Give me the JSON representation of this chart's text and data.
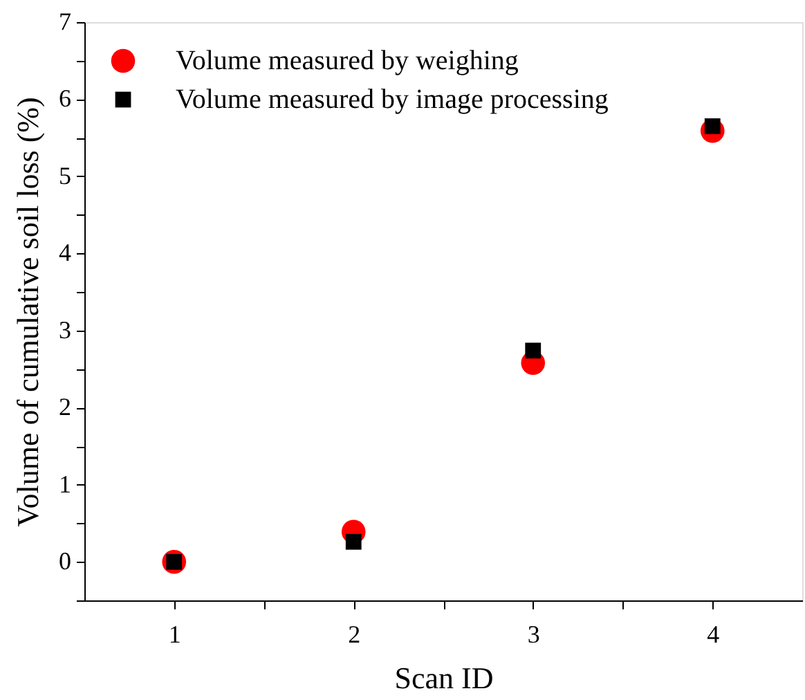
{
  "chart_data": {
    "type": "scatter",
    "xlabel": "Scan ID",
    "ylabel": "Volume of cumulative soil loss (%)",
    "x": [
      1,
      2,
      3,
      4
    ],
    "series": [
      {
        "name": "Volume measured by weighing",
        "color": "#ff0000",
        "marker": "circle",
        "values": [
          0,
          0.39,
          2.58,
          5.59
        ]
      },
      {
        "name": "Volume measured by image processing",
        "color": "#000000",
        "marker": "square",
        "values": [
          0,
          0.26,
          2.74,
          5.65
        ]
      }
    ],
    "xlim": [
      0.5,
      4.5
    ],
    "xticks": [
      1,
      {
        "value": 1.5,
        "label": null
      },
      2,
      {
        "value": 2.5,
        "label": null
      },
      3,
      {
        "value": 3.5,
        "label": null
      },
      4
    ],
    "ylim": [
      -0.5,
      7
    ],
    "yticks": [
      {
        "value": -0.5,
        "label": null
      },
      0,
      {
        "value": 0.5,
        "label": null
      },
      1,
      {
        "value": 1.5,
        "label": null
      },
      2,
      {
        "value": 2.5,
        "label": null
      },
      3,
      {
        "value": 3.5,
        "label": null
      },
      4,
      {
        "value": 4.5,
        "label": null
      },
      5,
      {
        "value": 5.5,
        "label": null
      },
      6,
      {
        "value": 6.5,
        "label": null
      },
      7
    ],
    "grid": false,
    "legend": "top left"
  }
}
